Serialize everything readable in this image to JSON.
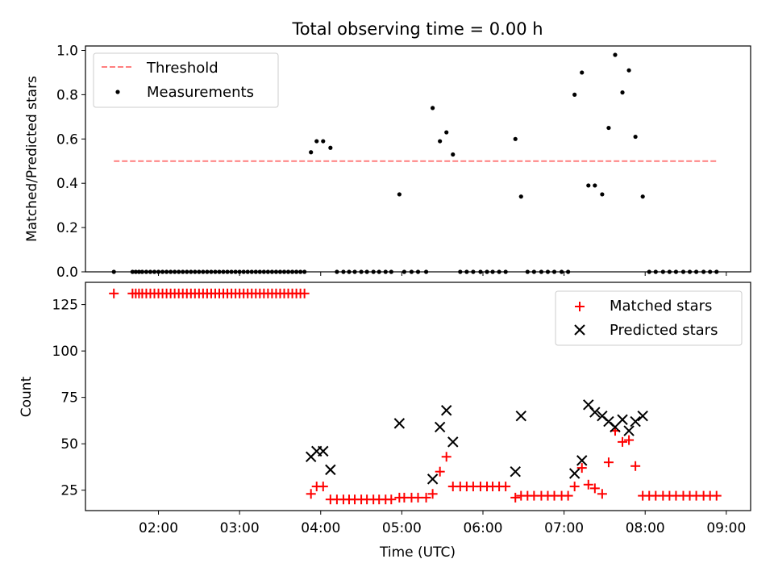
{
  "title": "Total observing time = 0.00 h",
  "chart_data": [
    {
      "type": "scatter",
      "ylabel": "Matched/Predicted stars",
      "xlim": [
        1.1,
        9.3
      ],
      "ylim": [
        0.0,
        1.02
      ],
      "yticks": [
        0.0,
        0.2,
        0.4,
        0.6,
        0.8,
        1.0
      ],
      "ytick_labels": [
        "0.0",
        "0.2",
        "0.4",
        "0.6",
        "0.8",
        "1.0"
      ],
      "legend": "top-left",
      "threshold": {
        "name": "Threshold",
        "y": 0.5,
        "x": [
          1.45,
          8.9
        ],
        "color": "#ff7f7f"
      },
      "series": [
        {
          "name": "Measurements",
          "color": "#000000",
          "x": [
            1.45,
            1.68,
            1.72,
            1.76,
            1.8,
            1.85,
            1.9,
            1.95,
            2.0,
            2.05,
            2.1,
            2.15,
            2.2,
            2.25,
            2.3,
            2.35,
            2.4,
            2.45,
            2.5,
            2.55,
            2.6,
            2.65,
            2.7,
            2.75,
            2.8,
            2.85,
            2.9,
            2.95,
            3.0,
            3.05,
            3.1,
            3.15,
            3.2,
            3.25,
            3.3,
            3.35,
            3.4,
            3.45,
            3.5,
            3.55,
            3.6,
            3.65,
            3.7,
            3.75,
            3.8,
            3.88,
            3.95,
            4.03,
            4.12,
            4.2,
            4.28,
            4.35,
            4.42,
            4.5,
            4.57,
            4.65,
            4.72,
            4.8,
            4.87,
            4.97,
            5.03,
            5.12,
            5.2,
            5.3,
            5.38,
            5.47,
            5.55,
            5.63,
            5.72,
            5.8,
            5.88,
            5.97,
            6.05,
            6.12,
            6.2,
            6.28,
            6.4,
            6.47,
            6.55,
            6.63,
            6.72,
            6.8,
            6.88,
            6.97,
            7.05,
            7.13,
            7.22,
            7.3,
            7.38,
            7.47,
            7.55,
            7.63,
            7.72,
            7.8,
            7.88,
            7.97,
            8.05,
            8.13,
            8.22,
            8.3,
            8.38,
            8.47,
            8.55,
            8.63,
            8.72,
            8.8,
            8.88
          ],
          "y": [
            0,
            0,
            0,
            0,
            0,
            0,
            0,
            0,
            0,
            0,
            0,
            0,
            0,
            0,
            0,
            0,
            0,
            0,
            0,
            0,
            0,
            0,
            0,
            0,
            0,
            0,
            0,
            0,
            0,
            0,
            0,
            0,
            0,
            0,
            0,
            0,
            0,
            0,
            0,
            0,
            0,
            0,
            0,
            0,
            0,
            0.54,
            0.59,
            0.59,
            0.56,
            0,
            0,
            0,
            0,
            0,
            0,
            0,
            0,
            0,
            0,
            0.35,
            0,
            0,
            0,
            0,
            0.74,
            0.59,
            0.63,
            0.53,
            0,
            0,
            0,
            0,
            0,
            0,
            0,
            0,
            0.6,
            0.34,
            0,
            0,
            0,
            0,
            0,
            0,
            0,
            0.8,
            0.9,
            0.39,
            0.39,
            0.35,
            0.65,
            0.98,
            0.81,
            0.91,
            0.61,
            0.34,
            0,
            0,
            0,
            0,
            0,
            0,
            0,
            0,
            0,
            0,
            0
          ]
        }
      ]
    },
    {
      "type": "scatter",
      "xlabel": "Time (UTC)",
      "ylabel": "Count",
      "xlim": [
        1.1,
        9.3
      ],
      "ylim": [
        14,
        137
      ],
      "yticks": [
        25,
        50,
        75,
        100,
        125
      ],
      "ytick_labels": [
        "25",
        "50",
        "75",
        "100",
        "125"
      ],
      "xticks": [
        2,
        3,
        4,
        5,
        6,
        7,
        8,
        9
      ],
      "xtick_labels": [
        "02:00",
        "03:00",
        "04:00",
        "05:00",
        "06:00",
        "07:00",
        "08:00",
        "09:00"
      ],
      "legend": "top-right",
      "series": [
        {
          "name": "Matched stars",
          "color": "#ff0000",
          "marker": "plus",
          "x": [
            1.45,
            1.68,
            1.72,
            1.76,
            1.8,
            1.85,
            1.9,
            1.95,
            2.0,
            2.05,
            2.1,
            2.15,
            2.2,
            2.25,
            2.3,
            2.35,
            2.4,
            2.45,
            2.5,
            2.55,
            2.6,
            2.65,
            2.7,
            2.75,
            2.8,
            2.85,
            2.9,
            2.95,
            3.0,
            3.05,
            3.1,
            3.15,
            3.2,
            3.25,
            3.3,
            3.35,
            3.4,
            3.45,
            3.5,
            3.55,
            3.6,
            3.65,
            3.7,
            3.75,
            3.8,
            3.88,
            3.95,
            4.03,
            4.12,
            4.2,
            4.28,
            4.35,
            4.42,
            4.5,
            4.57,
            4.65,
            4.72,
            4.8,
            4.87,
            4.97,
            5.03,
            5.12,
            5.2,
            5.3,
            5.38,
            5.47,
            5.55,
            5.63,
            5.72,
            5.8,
            5.88,
            5.97,
            6.05,
            6.12,
            6.2,
            6.28,
            6.4,
            6.47,
            6.55,
            6.63,
            6.72,
            6.8,
            6.88,
            6.97,
            7.05,
            7.13,
            7.22,
            7.3,
            7.38,
            7.47,
            7.55,
            7.63,
            7.72,
            7.8,
            7.88,
            7.97,
            8.05,
            8.13,
            8.22,
            8.3,
            8.38,
            8.47,
            8.55,
            8.63,
            8.72,
            8.8,
            8.88
          ],
          "y": [
            131,
            131,
            131,
            131,
            131,
            131,
            131,
            131,
            131,
            131,
            131,
            131,
            131,
            131,
            131,
            131,
            131,
            131,
            131,
            131,
            131,
            131,
            131,
            131,
            131,
            131,
            131,
            131,
            131,
            131,
            131,
            131,
            131,
            131,
            131,
            131,
            131,
            131,
            131,
            131,
            131,
            131,
            131,
            131,
            131,
            23,
            27,
            27,
            20,
            20,
            20,
            20,
            20,
            20,
            20,
            20,
            20,
            20,
            20,
            21,
            21,
            21,
            21,
            21,
            23,
            35,
            43,
            27,
            27,
            27,
            27,
            27,
            27,
            27,
            27,
            27,
            21,
            22,
            22,
            22,
            22,
            22,
            22,
            22,
            22,
            27,
            37,
            28,
            26,
            23,
            40,
            57,
            51,
            52,
            38,
            22,
            22,
            22,
            22,
            22,
            22,
            22,
            22,
            22,
            22,
            22,
            22
          ]
        },
        {
          "name": "Predicted stars",
          "color": "#000000",
          "marker": "x",
          "x": [
            3.88,
            3.95,
            4.03,
            4.12,
            4.97,
            5.38,
            5.47,
            5.55,
            5.63,
            6.4,
            6.47,
            7.13,
            7.22,
            7.3,
            7.38,
            7.47,
            7.55,
            7.63,
            7.72,
            7.8,
            7.88,
            7.97
          ],
          "y": [
            43,
            46,
            46,
            36,
            61,
            31,
            59,
            68,
            51,
            35,
            65,
            34,
            41,
            71,
            67,
            65,
            62,
            59,
            63,
            57,
            62,
            65
          ]
        }
      ]
    }
  ]
}
